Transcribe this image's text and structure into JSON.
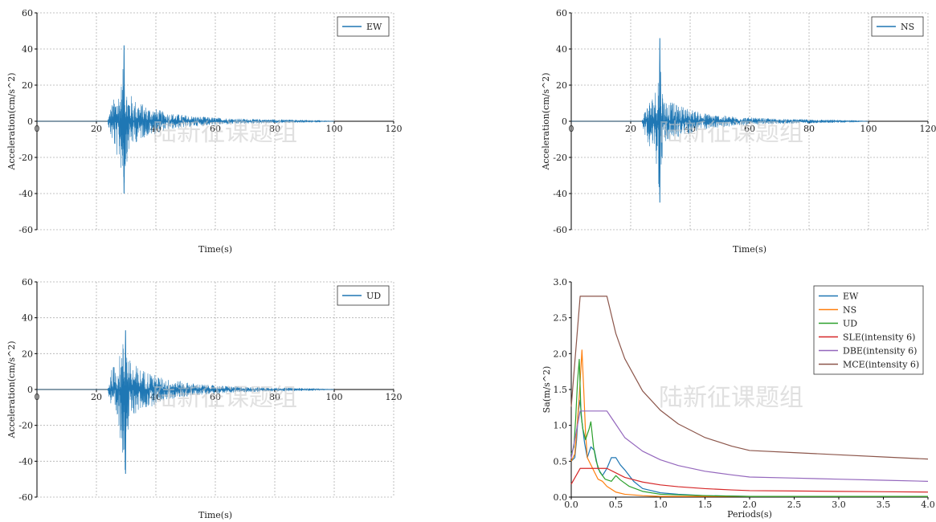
{
  "watermark": "陆新征课题组",
  "colors": {
    "EW": "#1f77b4",
    "NS": "#ff7f0e",
    "UD": "#2ca02c",
    "SLE": "#d62728",
    "DBE": "#9467bd",
    "MCE": "#8c564b",
    "grid": "#b0b0b0",
    "axis": "#000000"
  },
  "chart_data": [
    {
      "id": "ew",
      "type": "line",
      "xlabel": "Time(s)",
      "ylabel": "Acceleration(cm/s^2)",
      "xlim": [
        0,
        120
      ],
      "ylim": [
        -60,
        60
      ],
      "xticks": [
        0,
        20,
        40,
        60,
        80,
        100,
        120
      ],
      "yticks": [
        -60,
        -40,
        -20,
        0,
        20,
        40,
        60
      ],
      "grid": true,
      "legend": "top-right",
      "series": [
        {
          "name": "EW",
          "color_key": "EW",
          "x": [
            0,
            23.8,
            24.8,
            25.6,
            26.4,
            27.2,
            28.0,
            28.8,
            29.3,
            29.8,
            30.3,
            31.0,
            32.0,
            33.0,
            34.5,
            36.0,
            38.0,
            40.0,
            43.0,
            47.0,
            52.0,
            58.0,
            65.0,
            72.0,
            80.0,
            88.0,
            95.0,
            100.0
          ],
          "upper": [
            0,
            0.5,
            8,
            12,
            14,
            16,
            20,
            25,
            42,
            22,
            19,
            16,
            14,
            12,
            11,
            9,
            8,
            7,
            5,
            4,
            3,
            2.2,
            1.6,
            1.2,
            1.0,
            0.8,
            0.5,
            0
          ],
          "lower": [
            0,
            -0.5,
            -9,
            -13,
            -17,
            -22,
            -25,
            -35,
            -40,
            -30,
            -22,
            -17,
            -14,
            -12,
            -11,
            -9,
            -8,
            -7,
            -5,
            -4,
            -3,
            -2.2,
            -1.6,
            -1.2,
            -1.0,
            -0.8,
            -0.5,
            0
          ]
        }
      ]
    },
    {
      "id": "ns",
      "type": "line",
      "xlabel": "Time(s)",
      "ylabel": "Acceleration(cm/s^2)",
      "xlim": [
        0,
        120
      ],
      "ylim": [
        -60,
        60
      ],
      "xticks": [
        0,
        20,
        40,
        60,
        80,
        100,
        120
      ],
      "yticks": [
        -60,
        -40,
        -20,
        0,
        20,
        40,
        60
      ],
      "grid": true,
      "legend": "top-right",
      "series": [
        {
          "name": "NS",
          "color_key": "NS_line",
          "x": [
            0,
            23.8,
            24.8,
            25.6,
            26.4,
            27.2,
            28.0,
            28.8,
            29.8,
            30.5,
            31.2,
            32.0,
            33.0,
            34.5,
            36.0,
            38.0,
            40.0,
            43.0,
            47.0,
            52.0,
            58.0,
            65.0,
            72.0,
            80.0,
            88.0,
            95.0,
            100.0
          ],
          "upper": [
            0,
            0.5,
            7,
            10,
            12,
            14,
            16,
            22,
            46,
            20,
            14,
            12,
            11,
            10,
            9,
            8,
            7,
            5,
            4,
            3,
            2.2,
            1.6,
            1.2,
            1.0,
            0.8,
            0.5,
            0
          ],
          "lower": [
            0,
            -0.5,
            -8,
            -11,
            -14,
            -17,
            -20,
            -25,
            -45,
            -22,
            -15,
            -12,
            -11,
            -10,
            -9,
            -8,
            -7,
            -5,
            -4,
            -3,
            -2.2,
            -1.6,
            -1.2,
            -1.0,
            -0.8,
            -0.5,
            0
          ]
        }
      ]
    },
    {
      "id": "ud",
      "type": "line",
      "xlabel": "Time(s)",
      "ylabel": "Acceleration(cm/s^2)",
      "xlim": [
        0,
        120
      ],
      "ylim": [
        -60,
        60
      ],
      "xticks": [
        0,
        20,
        40,
        60,
        80,
        100,
        120
      ],
      "yticks": [
        -60,
        -40,
        -20,
        0,
        20,
        40,
        60
      ],
      "grid": true,
      "legend": "top-right",
      "series": [
        {
          "name": "UD",
          "color_key": "EW",
          "x": [
            0,
            23.8,
            24.8,
            25.6,
            26.4,
            27.2,
            28.0,
            28.8,
            29.8,
            30.5,
            31.2,
            32.0,
            33.0,
            34.5,
            36.0,
            38.0,
            40.0,
            43.0,
            47.0,
            52.0,
            58.0,
            65.0,
            72.0,
            80.0,
            88.0,
            95.0,
            100.0
          ],
          "upper": [
            0,
            0.5,
            10,
            13,
            15,
            17,
            20,
            27,
            33,
            22,
            17,
            15,
            14,
            12,
            11,
            10,
            8,
            6,
            5,
            3.5,
            2.5,
            1.8,
            1.3,
            1.0,
            0.8,
            0.5,
            0
          ],
          "lower": [
            0,
            -0.5,
            -11,
            -15,
            -19,
            -23,
            -28,
            -36,
            -47,
            -30,
            -20,
            -16,
            -14,
            -12,
            -11,
            -10,
            -8,
            -6,
            -5,
            -3.5,
            -2.5,
            -1.8,
            -1.3,
            -1.0,
            -0.8,
            -0.5,
            0
          ]
        }
      ]
    },
    {
      "id": "spectrum",
      "type": "line",
      "xlabel": "Periods(s)",
      "ylabel": "Sa(m/s^2)",
      "xlim": [
        0,
        4
      ],
      "ylim": [
        0,
        3
      ],
      "xticks": [
        0.0,
        0.5,
        1.0,
        1.5,
        2.0,
        2.5,
        3.0,
        3.5,
        4.0
      ],
      "xtick_labels": [
        "0.0",
        "0.5",
        "1.0",
        "1.5",
        "2.0",
        "2.5",
        "3.0",
        "3.5",
        "4.0"
      ],
      "yticks": [
        0.0,
        0.5,
        1.0,
        1.5,
        2.0,
        2.5,
        3.0
      ],
      "ytick_labels": [
        "0.0",
        "0.5",
        "1.0",
        "1.5",
        "2.0",
        "2.5",
        "3.0"
      ],
      "grid": false,
      "legend": "top-right",
      "series": [
        {
          "name": "EW",
          "color_key": "EW",
          "x": [
            0,
            0.04,
            0.06,
            0.08,
            0.1,
            0.12,
            0.15,
            0.18,
            0.22,
            0.26,
            0.3,
            0.35,
            0.4,
            0.45,
            0.5,
            0.55,
            0.6,
            0.7,
            0.8,
            1.0,
            1.2,
            1.5,
            2.0,
            2.5,
            3.0,
            4.0
          ],
          "y": [
            0.5,
            0.55,
            0.8,
            1.2,
            1.35,
            1.05,
            0.75,
            0.55,
            0.7,
            0.65,
            0.4,
            0.3,
            0.4,
            0.55,
            0.55,
            0.45,
            0.38,
            0.22,
            0.12,
            0.06,
            0.04,
            0.02,
            0.01,
            0.01,
            0.01,
            0.01
          ]
        },
        {
          "name": "NS",
          "color_key": "NS",
          "x": [
            0,
            0.04,
            0.06,
            0.09,
            0.12,
            0.14,
            0.16,
            0.18,
            0.22,
            0.26,
            0.3,
            0.35,
            0.4,
            0.5,
            0.6,
            0.8,
            1.0,
            1.5,
            2.0,
            3.0,
            4.0
          ],
          "y": [
            0.5,
            0.6,
            0.9,
            1.4,
            2.05,
            1.5,
            0.9,
            0.55,
            0.45,
            0.35,
            0.25,
            0.22,
            0.15,
            0.07,
            0.04,
            0.02,
            0.01,
            0.01,
            0.01,
            0.01,
            0.01
          ]
        },
        {
          "name": "UD",
          "color_key": "UD",
          "x": [
            0,
            0.03,
            0.05,
            0.07,
            0.09,
            0.11,
            0.13,
            0.16,
            0.2,
            0.22,
            0.25,
            0.28,
            0.32,
            0.38,
            0.45,
            0.5,
            0.55,
            0.65,
            0.8,
            1.0,
            1.5,
            2.0,
            4.0
          ],
          "y": [
            0.6,
            0.7,
            1.1,
            1.6,
            1.92,
            1.15,
            0.95,
            0.8,
            0.95,
            1.05,
            0.7,
            0.5,
            0.35,
            0.25,
            0.22,
            0.3,
            0.24,
            0.15,
            0.08,
            0.04,
            0.02,
            0.01,
            0.01
          ]
        },
        {
          "name": "SLE(intensity 6)",
          "color_key": "SLE",
          "x": [
            0,
            0.1,
            0.4,
            0.6,
            0.8,
            1.0,
            1.2,
            1.5,
            1.8,
            2.0,
            2.5,
            3.0,
            3.5,
            4.0
          ],
          "y": [
            0.18,
            0.4,
            0.4,
            0.275,
            0.21,
            0.17,
            0.145,
            0.118,
            0.1,
            0.09,
            0.085,
            0.08,
            0.075,
            0.07
          ]
        },
        {
          "name": "DBE(intensity 6)",
          "color_key": "DBE",
          "x": [
            0,
            0.1,
            0.4,
            0.6,
            0.8,
            1.0,
            1.2,
            1.5,
            1.8,
            2.0,
            2.5,
            3.0,
            3.5,
            4.0
          ],
          "y": [
            0.54,
            1.2,
            1.2,
            0.83,
            0.64,
            0.52,
            0.44,
            0.36,
            0.31,
            0.28,
            0.265,
            0.25,
            0.235,
            0.22
          ]
        },
        {
          "name": "MCE(intensity 6)",
          "color_key": "MCE",
          "x": [
            0,
            0.1,
            0.4,
            0.5,
            0.6,
            0.8,
            1.0,
            1.2,
            1.5,
            1.8,
            2.0,
            2.5,
            3.0,
            3.5,
            4.0
          ],
          "y": [
            1.26,
            2.8,
            2.8,
            2.28,
            1.93,
            1.48,
            1.21,
            1.02,
            0.83,
            0.71,
            0.65,
            0.62,
            0.59,
            0.56,
            0.53
          ]
        }
      ]
    }
  ]
}
